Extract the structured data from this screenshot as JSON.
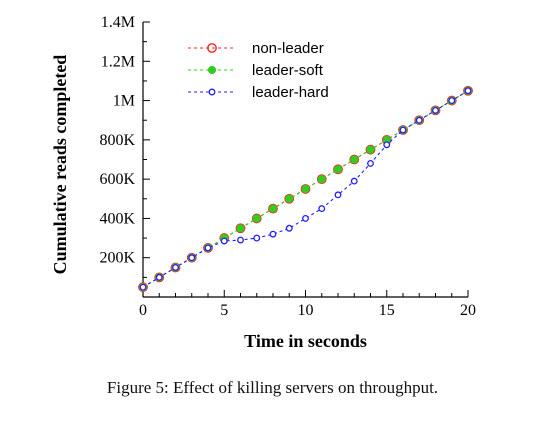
{
  "caption": "Figure 5: Effect of killing servers on throughput.",
  "chart_data": {
    "type": "line",
    "xlabel": "Time in seconds",
    "ylabel": "Cumulative reads completed",
    "xlim": [
      0,
      20
    ],
    "ylim": [
      0,
      1400000
    ],
    "x_ticks": [
      0,
      5,
      10,
      15,
      20
    ],
    "x_tick_labels": [
      "0",
      "5",
      "10",
      "15",
      "20"
    ],
    "y_ticks": [
      200000,
      400000,
      600000,
      800000,
      1000000,
      1200000,
      1400000
    ],
    "y_tick_labels": [
      "200K",
      "400K",
      "600K",
      "800K",
      "1M",
      "1.2M",
      "1.4M"
    ],
    "grid": false,
    "legend_position": "top-left",
    "x": [
      0,
      1,
      2,
      3,
      4,
      5,
      6,
      7,
      8,
      9,
      10,
      11,
      12,
      13,
      14,
      15,
      16,
      17,
      18,
      19,
      20
    ],
    "series": [
      {
        "name": "non-leader",
        "color": "#ff2020",
        "marker": "circle-open",
        "values": [
          50000,
          100000,
          150000,
          200000,
          250000,
          300000,
          350000,
          400000,
          450000,
          500000,
          550000,
          600000,
          650000,
          700000,
          750000,
          800000,
          850000,
          900000,
          950000,
          1000000,
          1050000
        ]
      },
      {
        "name": "leader-soft",
        "color": "#33cc22",
        "marker": "circle-filled",
        "values": [
          50000,
          100000,
          150000,
          200000,
          250000,
          300000,
          350000,
          400000,
          450000,
          500000,
          550000,
          600000,
          650000,
          700000,
          750000,
          800000,
          850000,
          900000,
          950000,
          1000000,
          1050000
        ]
      },
      {
        "name": "leader-hard",
        "color": "#2020ff",
        "marker": "circle-open-small",
        "values": [
          50000,
          100000,
          150000,
          200000,
          250000,
          285000,
          290000,
          300000,
          320000,
          350000,
          400000,
          450000,
          520000,
          590000,
          680000,
          775000,
          850000,
          900000,
          950000,
          1000000,
          1050000
        ]
      }
    ]
  }
}
